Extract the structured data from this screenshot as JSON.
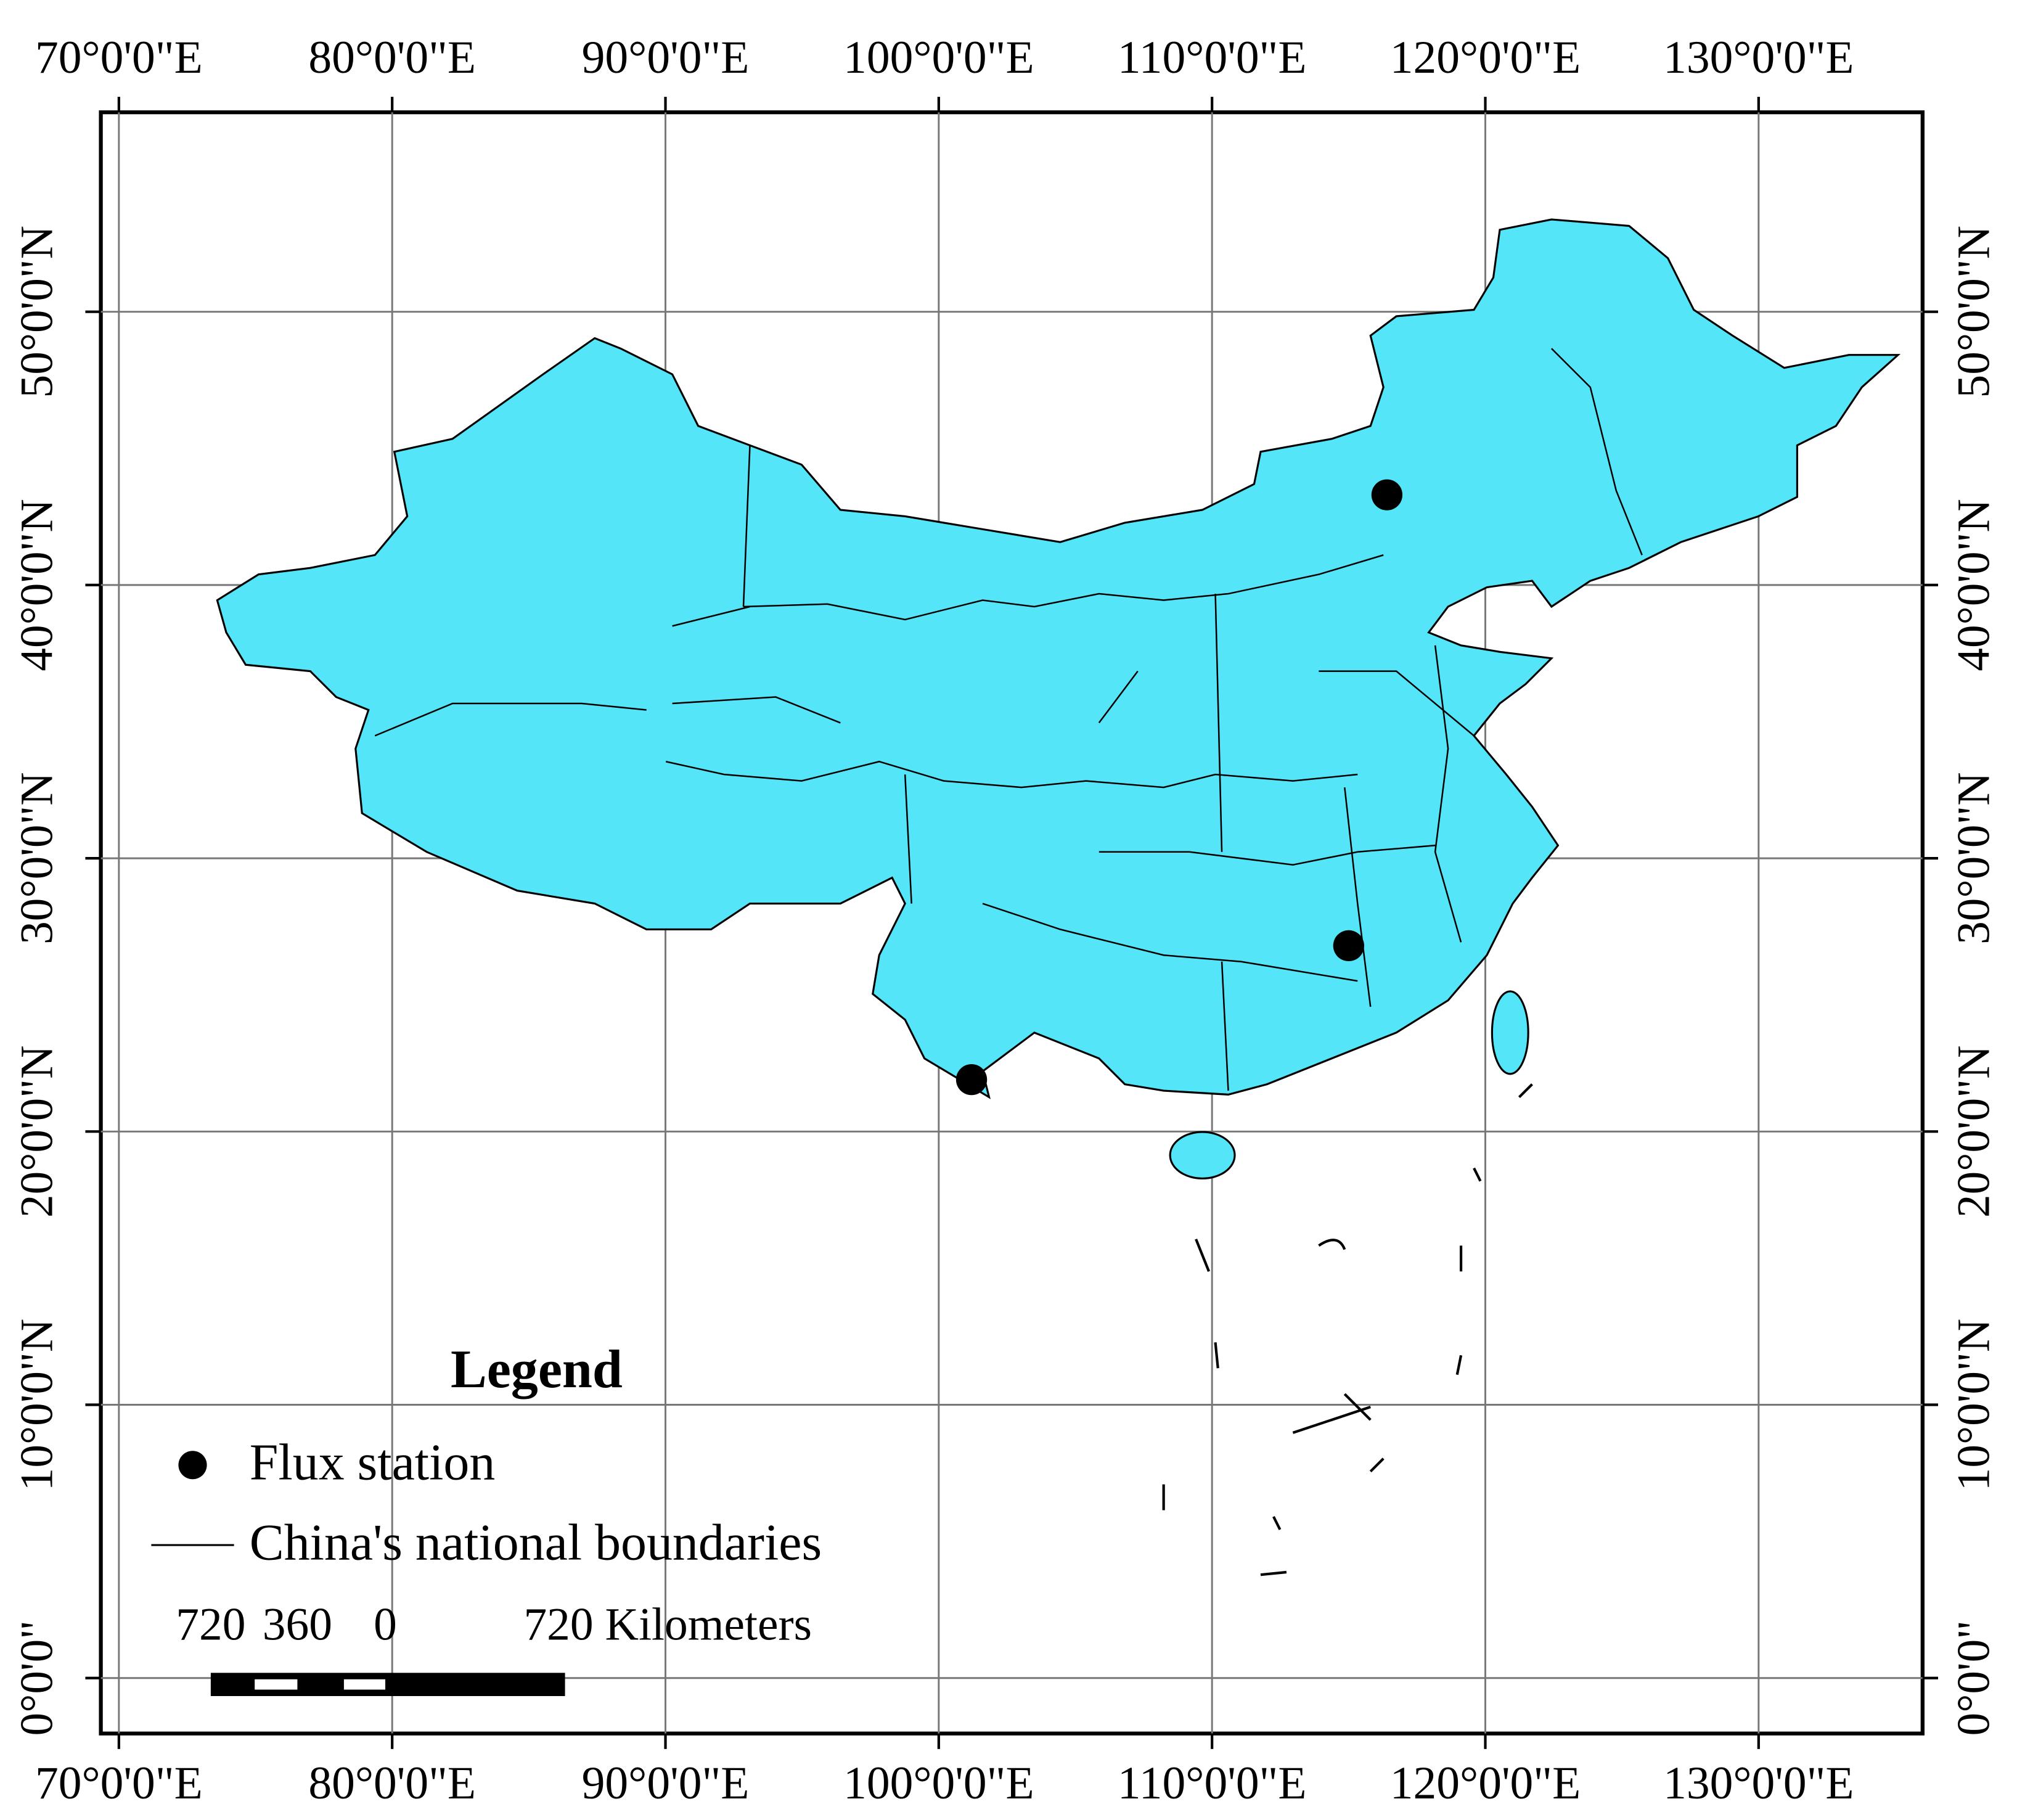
{
  "map": {
    "xlim": [
      69.34,
      136.0
    ],
    "ylim": [
      -2.03,
      57.3
    ],
    "xticks": [
      {
        "value": 70,
        "label": "70°0'0\"E"
      },
      {
        "value": 80,
        "label": "80°0'0\"E"
      },
      {
        "value": 90,
        "label": "90°0'0\"E"
      },
      {
        "value": 100,
        "label": "100°0'0\"E"
      },
      {
        "value": 110,
        "label": "110°0'0\"E"
      },
      {
        "value": 120,
        "label": "120°0'0\"E"
      },
      {
        "value": 130,
        "label": "130°0'0\"E"
      }
    ],
    "yticks": [
      {
        "value": 0,
        "label": "0°0'0\""
      },
      {
        "value": 10,
        "label": "10°0'0\"N"
      },
      {
        "value": 20,
        "label": "20°0'0\"N"
      },
      {
        "value": 30,
        "label": "30°0'0\"N"
      },
      {
        "value": 40,
        "label": "40°0'0\"N"
      },
      {
        "value": 50,
        "label": "50°0'0\"N"
      }
    ],
    "stations": [
      {
        "lon": 116.4,
        "lat": 43.3
      },
      {
        "lon": 115.0,
        "lat": 26.8
      },
      {
        "lon": 101.2,
        "lat": 21.9
      }
    ],
    "legend": {
      "title": "Legend",
      "items": [
        "Flux station",
        "China's national boundaries"
      ]
    },
    "scale_bar": {
      "labels": [
        720,
        360,
        0
      ],
      "end_label": "720 Kilometers"
    }
  }
}
